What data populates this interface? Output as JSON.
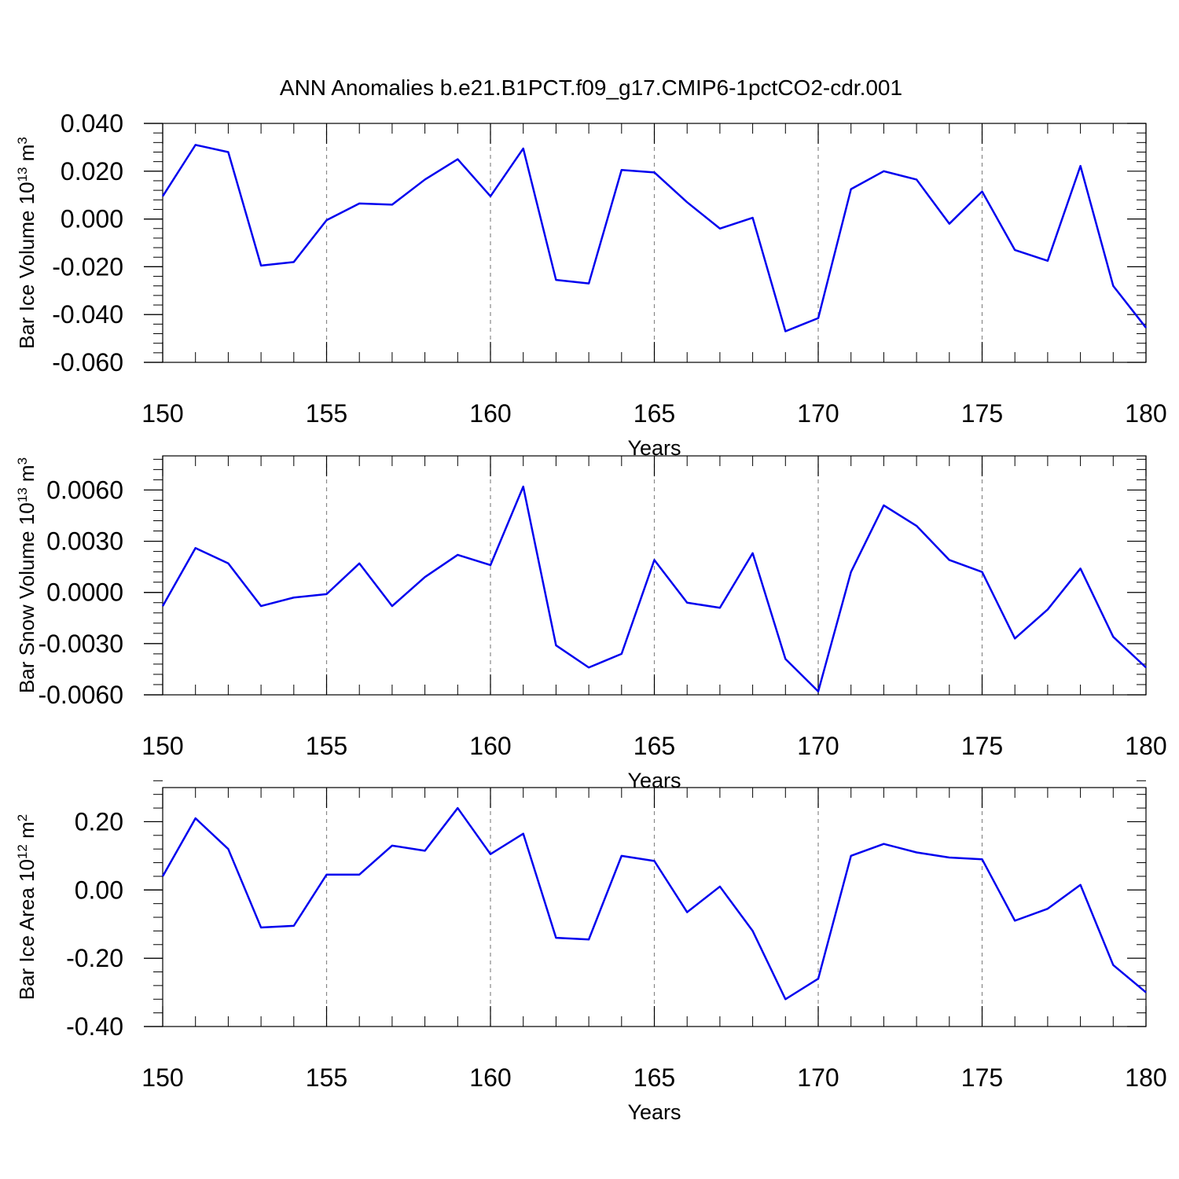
{
  "title": "ANN Anomalies b.e21.B1PCT.f09_g17.CMIP6-1pctCO2-cdr.001",
  "line_color": "#0000ee",
  "chart_data": [
    {
      "type": "line",
      "xlabel": "Years",
      "ylabel": "Bar Ice Volume 10",
      "ylabel_exp": "13",
      "ylabel_unit": " m",
      "ylabel_unit_exp": "3",
      "xlim": [
        150,
        180
      ],
      "ylim": [
        -0.06,
        0.04
      ],
      "xticks": [
        150,
        155,
        160,
        165,
        170,
        175,
        180
      ],
      "xtick_labels": [
        "150",
        "155",
        "160",
        "165",
        "170",
        "175",
        "180"
      ],
      "yticks": [
        -0.06,
        -0.04,
        -0.02,
        0.0,
        0.02,
        0.04
      ],
      "ytick_labels": [
        "-0.060",
        "-0.040",
        "-0.020",
        "0.000",
        "0.020",
        "0.040"
      ],
      "x": [
        150,
        151,
        152,
        153,
        154,
        155,
        156,
        157,
        158,
        159,
        160,
        161,
        162,
        163,
        164,
        165,
        166,
        167,
        168,
        169,
        170,
        171,
        172,
        173,
        174,
        175,
        176,
        177,
        178,
        179,
        180
      ],
      "y": [
        0.0095,
        0.031,
        0.028,
        -0.0195,
        -0.018,
        -0.0005,
        0.0065,
        0.006,
        0.0165,
        0.025,
        0.0095,
        0.0295,
        -0.0255,
        -0.027,
        0.0205,
        0.0195,
        0.007,
        -0.004,
        0.0005,
        -0.047,
        -0.0415,
        0.0125,
        0.02,
        0.0165,
        -0.002,
        0.0115,
        -0.013,
        -0.0175,
        0.0222,
        -0.028,
        -0.0455
      ]
    },
    {
      "type": "line",
      "xlabel": "Years",
      "ylabel": "Bar Snow Volume 10",
      "ylabel_exp": "13",
      "ylabel_unit": " m",
      "ylabel_unit_exp": "3",
      "xlim": [
        150,
        180
      ],
      "ylim": [
        -0.006,
        0.008
      ],
      "xticks": [
        150,
        155,
        160,
        165,
        170,
        175,
        180
      ],
      "xtick_labels": [
        "150",
        "155",
        "160",
        "165",
        "170",
        "175",
        "180"
      ],
      "yticks": [
        -0.006,
        -0.003,
        0.0,
        0.003,
        0.006
      ],
      "ytick_labels": [
        "-0.0060",
        "-0.0030",
        "0.0000",
        "0.0030",
        "0.0060"
      ],
      "x": [
        150,
        151,
        152,
        153,
        154,
        155,
        156,
        157,
        158,
        159,
        160,
        161,
        162,
        163,
        164,
        165,
        166,
        167,
        168,
        169,
        170,
        171,
        172,
        173,
        174,
        175,
        176,
        177,
        178,
        179,
        180
      ],
      "y": [
        -0.0008,
        0.0026,
        0.0017,
        -0.0008,
        -0.0003,
        -0.0001,
        0.0017,
        -0.0008,
        0.0009,
        0.0022,
        0.0016,
        0.0062,
        -0.0031,
        -0.0044,
        -0.0036,
        0.0019,
        -0.0006,
        -0.0009,
        0.0023,
        -0.0039,
        -0.0058,
        0.0012,
        0.0051,
        0.0039,
        0.0019,
        0.0012,
        -0.0027,
        -0.001,
        0.0014,
        -0.0026,
        -0.0044
      ]
    },
    {
      "type": "line",
      "xlabel": "Years",
      "ylabel": "Bar Ice Area 10",
      "ylabel_exp": "12",
      "ylabel_unit": " m",
      "ylabel_unit_exp": "2",
      "xlim": [
        150,
        180
      ],
      "ylim": [
        -0.4,
        0.3
      ],
      "xticks": [
        150,
        155,
        160,
        165,
        170,
        175,
        180
      ],
      "xtick_labels": [
        "150",
        "155",
        "160",
        "165",
        "170",
        "175",
        "180"
      ],
      "yticks": [
        -0.4,
        -0.2,
        0.0,
        0.2
      ],
      "ytick_labels": [
        "-0.40",
        "-0.20",
        "0.00",
        "0.20"
      ],
      "x": [
        150,
        151,
        152,
        153,
        154,
        155,
        156,
        157,
        158,
        159,
        160,
        161,
        162,
        163,
        164,
        165,
        166,
        167,
        168,
        169,
        170,
        171,
        172,
        173,
        174,
        175,
        176,
        177,
        178,
        179,
        180
      ],
      "y": [
        0.04,
        0.21,
        0.12,
        -0.11,
        -0.105,
        0.045,
        0.045,
        0.13,
        0.115,
        0.24,
        0.105,
        0.165,
        -0.14,
        -0.145,
        0.1,
        0.085,
        -0.065,
        0.01,
        -0.12,
        -0.32,
        -0.26,
        0.1,
        0.135,
        0.11,
        0.095,
        0.09,
        -0.09,
        -0.055,
        0.015,
        -0.22,
        -0.3
      ]
    }
  ]
}
